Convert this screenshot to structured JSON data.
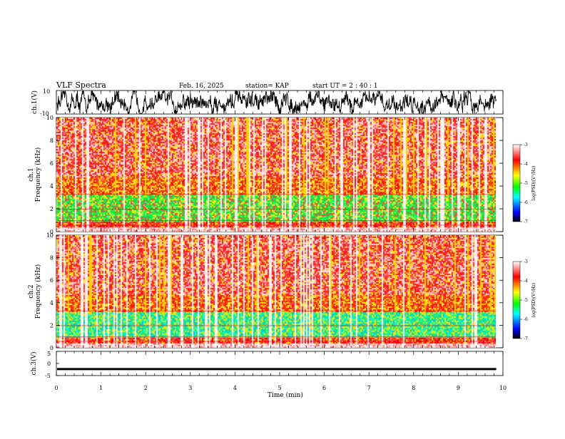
{
  "header": {
    "title": "VLF Spectra",
    "date": "Feb. 16, 2025",
    "station": "station= KAP",
    "start_ut": "start  UT  =  2 : 40 : 1"
  },
  "chart_data": [
    {
      "type": "line",
      "name": "ch1-waveform",
      "ylabel": "ch.1(V)",
      "ylim": [
        -10,
        10
      ],
      "ytick_labels": [
        "10",
        "-10"
      ],
      "xlim": [
        0,
        10
      ]
    },
    {
      "type": "heatmap",
      "name": "ch1-spectrogram",
      "ylabel": "ch.1\nFrequency (kHz)",
      "ylim": [
        0,
        10
      ],
      "ytick_labels": [
        "0",
        "2",
        "4",
        "6",
        "8",
        "10"
      ],
      "xlim": [
        0,
        10
      ],
      "data_end_min": 9.85,
      "colorbar": {
        "label": "log(PSD)(V²/Hz)",
        "range": [
          -7,
          -3
        ],
        "tick_labels": [
          "-7",
          "-6",
          "-5",
          "-4",
          "-3"
        ],
        "colors": [
          "#000000",
          "#0000ff",
          "#00ffff",
          "#00ff00",
          "#ffff00",
          "#ff0000",
          "#ffffff"
        ]
      },
      "bands_kHz": [
        {
          "from": 0.0,
          "to": 0.4,
          "level": "white-pink"
        },
        {
          "from": 0.4,
          "to": 1.0,
          "level": "red"
        },
        {
          "from": 1.0,
          "to": 3.3,
          "level": "green"
        },
        {
          "from": 3.3,
          "to": 4.8,
          "level": "red-yellow"
        },
        {
          "from": 4.8,
          "to": 10.0,
          "level": "red-pink"
        }
      ]
    },
    {
      "type": "heatmap",
      "name": "ch2-spectrogram",
      "ylabel": "ch.2\nFrequency (kHz)",
      "ylim": [
        0,
        10
      ],
      "ytick_labels": [
        "0",
        "2",
        "4",
        "6",
        "8",
        "10"
      ],
      "xlim": [
        0,
        10
      ],
      "data_end_min": 9.85,
      "colorbar": {
        "label": "log(PSD)(V²/Hz)",
        "range": [
          -7,
          -3
        ],
        "tick_labels": [
          "-7",
          "-6",
          "-5",
          "-4",
          "-3"
        ],
        "colors": [
          "#000000",
          "#0000ff",
          "#00ffff",
          "#00ff00",
          "#ffff00",
          "#ff0000",
          "#ffffff"
        ]
      },
      "bands_kHz": [
        {
          "from": 0.0,
          "to": 0.4,
          "level": "white-pink"
        },
        {
          "from": 0.4,
          "to": 1.0,
          "level": "red"
        },
        {
          "from": 1.0,
          "to": 3.2,
          "level": "green-cyan"
        },
        {
          "from": 3.2,
          "to": 4.8,
          "level": "red-yellow"
        },
        {
          "from": 4.8,
          "to": 10.0,
          "level": "red-pink"
        }
      ]
    },
    {
      "type": "line",
      "name": "ch3-voltage",
      "ylabel": "ch.3(V)",
      "ylim": [
        -5,
        5
      ],
      "ytick_labels": [
        "5",
        "0",
        "-5"
      ],
      "xlim": [
        0,
        10
      ],
      "approx_level_V": -2.3
    }
  ],
  "x_axis": {
    "label": "Time (min)",
    "tick_labels": [
      "0",
      "1",
      "2",
      "3",
      "4",
      "5",
      "6",
      "7",
      "8",
      "9",
      "10"
    ]
  }
}
